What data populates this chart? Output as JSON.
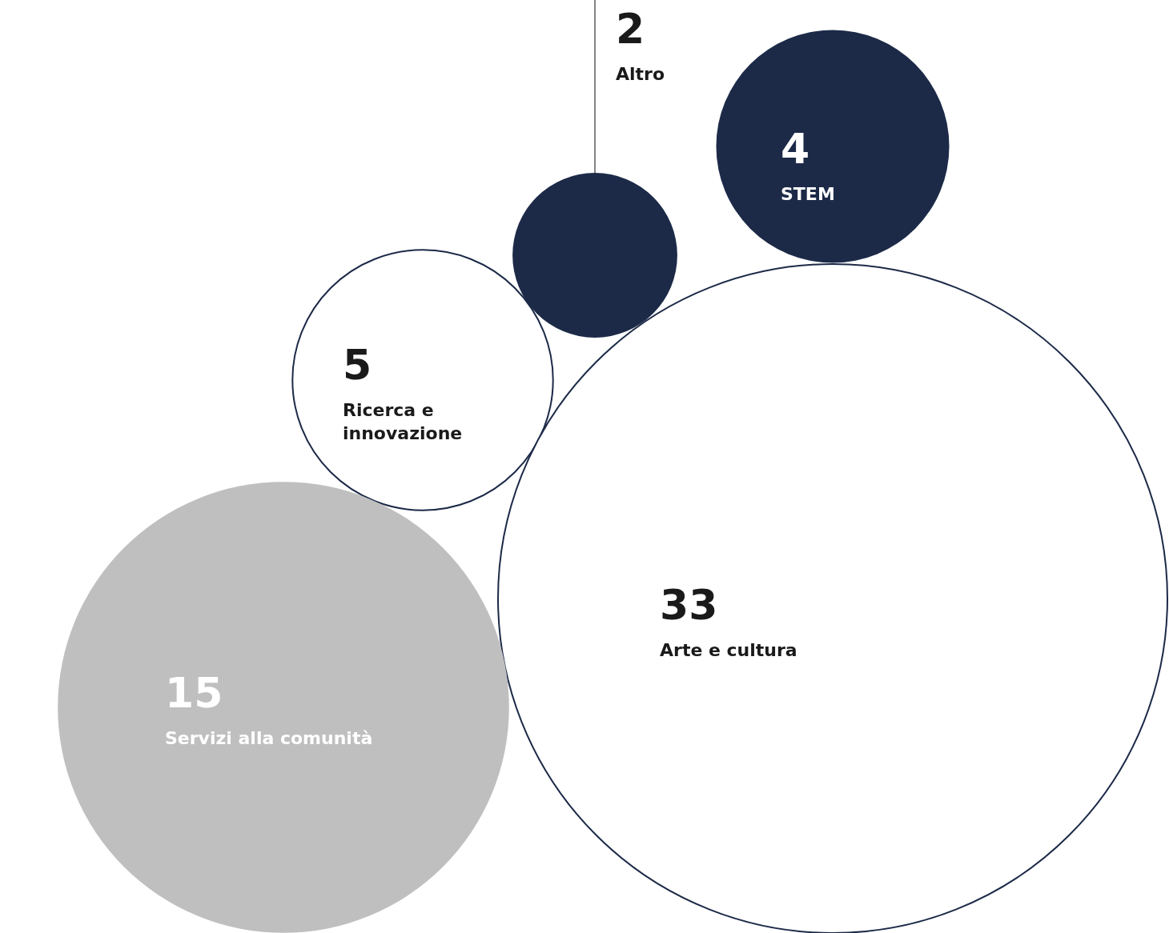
{
  "chart_data": {
    "type": "other",
    "categories": [
      "Altro",
      "STEM",
      "Ricerca e innovazione",
      "Arte e cultura",
      "Servizi alla comunità"
    ],
    "values": [
      2,
      4,
      5,
      33,
      15
    ],
    "colors": [
      "#1c2a48",
      "#1c2a48",
      "#ffffff",
      "#ffffff",
      "#bfbfbf"
    ],
    "data_labels": true
  }
}
